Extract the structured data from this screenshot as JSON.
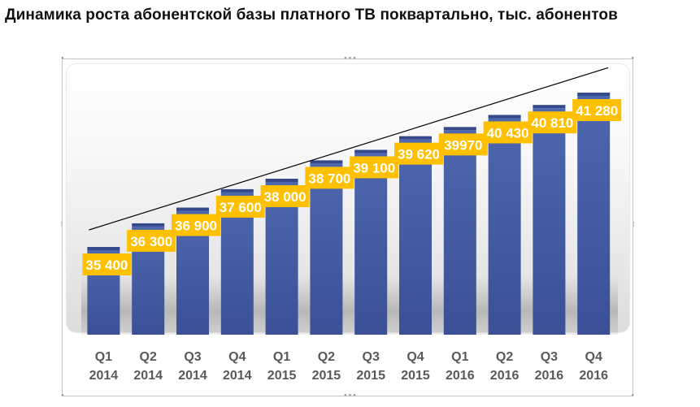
{
  "title": "Динамика роста абонентской базы платного ТВ поквартально, тыс. абонентов",
  "colors": {
    "bar": "#4a63a8",
    "bar_dark": "#34498a",
    "label_bg": "#ffc000",
    "label_text": "#ffffff",
    "trendline": "#000000",
    "axis_text": "#595959"
  },
  "chart_data": {
    "type": "bar",
    "title": "Динамика роста абонентской базы платного ТВ поквартально, тыс. абонентов",
    "xlabel": "",
    "ylabel": "",
    "ylim": [
      30000,
      42000
    ],
    "grid": false,
    "legend": "none",
    "trendline": "linear",
    "categories": [
      [
        "Q1",
        "2014"
      ],
      [
        "Q2",
        "2014"
      ],
      [
        "Q3",
        "2014"
      ],
      [
        "Q4",
        "2014"
      ],
      [
        "Q1",
        "2015"
      ],
      [
        "Q2",
        "2015"
      ],
      [
        "Q3",
        "2015"
      ],
      [
        "Q4",
        "2015"
      ],
      [
        "Q1",
        "2016"
      ],
      [
        "Q2",
        "2016"
      ],
      [
        "Q3",
        "2016"
      ],
      [
        "Q4",
        "2016"
      ]
    ],
    "values": [
      35400,
      36300,
      36900,
      37600,
      38000,
      38700,
      39100,
      39620,
      39970,
      40430,
      40810,
      41280
    ],
    "data_labels": [
      "35 400",
      "36 300",
      "36 900",
      "37 600",
      "38 000",
      "38 700",
      "39 100",
      "39 620",
      "39970",
      "40 430",
      "40 810",
      "41 280"
    ]
  }
}
